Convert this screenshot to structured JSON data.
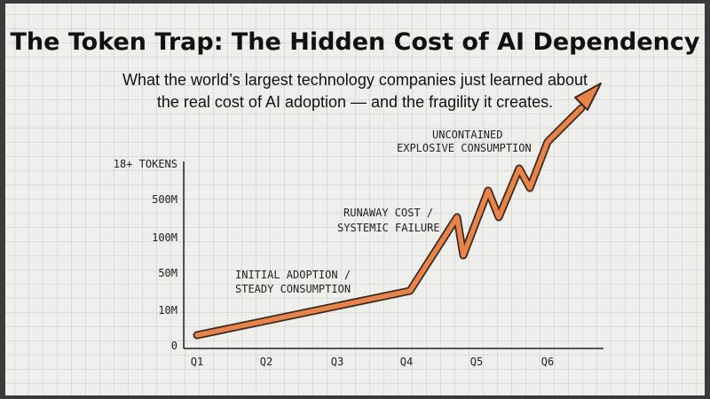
{
  "header": {
    "title": "The Token Trap: The Hidden Cost of AI Dependency",
    "subtitle_lines": [
      "What the world’s largest technology companies just learned about",
      "the real cost of AI adoption — and the fragility it creates."
    ]
  },
  "y_axis": {
    "labels": [
      "18+ TOKENS",
      "500M",
      "100M",
      "50M",
      "10M",
      "0"
    ]
  },
  "x_axis": {
    "labels": [
      "Q1",
      "Q2",
      "Q3",
      "Q4",
      "Q5",
      "Q6"
    ]
  },
  "annotations": [
    {
      "lines": [
        "INITIAL ADOPTION /",
        "STEADY CONSUMPTION"
      ]
    },
    {
      "lines": [
        "RUNAWAY COST /",
        "SYSTEMIC FAILURE"
      ]
    },
    {
      "lines": [
        "UNCONTAINED",
        "EXPLOSIVE CONSUMPTION"
      ]
    }
  ]
}
